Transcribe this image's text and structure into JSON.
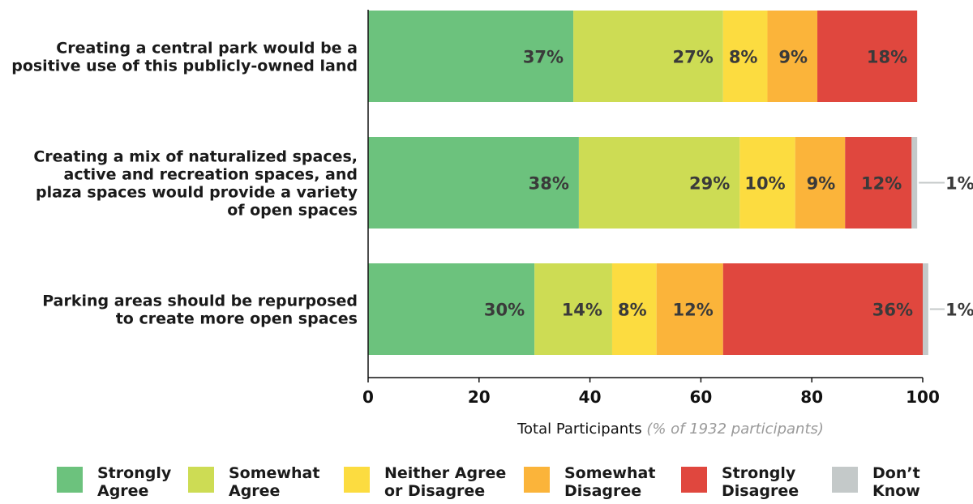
{
  "chart_data": {
    "type": "bar",
    "orientation": "horizontal",
    "stacked": true,
    "categories": [
      [
        "Creating a central park would be a",
        "positive use of this publicly-owned land"
      ],
      [
        "Creating a mix of naturalized spaces,",
        "active and recreation spaces, and",
        "plaza spaces would provide a variety",
        "of open spaces"
      ],
      [
        "Parking areas should be repurposed",
        "to create more open spaces"
      ]
    ],
    "series": [
      {
        "name": [
          "Strongly",
          "Agree"
        ],
        "color": "#6cc27d",
        "values": [
          37,
          38,
          30
        ]
      },
      {
        "name": [
          "Somewhat",
          "Agree"
        ],
        "color": "#cddc54",
        "values": [
          27,
          29,
          14
        ]
      },
      {
        "name": [
          "Neither Agree",
          "or Disagree"
        ],
        "color": "#fcdc40",
        "values": [
          8,
          10,
          8
        ]
      },
      {
        "name": [
          "Somewhat",
          "Disagree"
        ],
        "color": "#fbb43a",
        "values": [
          9,
          9,
          12
        ]
      },
      {
        "name": [
          "Strongly",
          "Disagree"
        ],
        "color": "#e0473e",
        "values": [
          18,
          12,
          36
        ]
      },
      {
        "name": [
          "Don’t",
          "Know"
        ],
        "color": "#c4c9c9",
        "values": [
          0,
          1,
          1
        ]
      }
    ],
    "xlabel": "Total Participants",
    "xlabel_note": "(% of 1932 participants)",
    "xlim": [
      0,
      100
    ],
    "xticks": [
      0,
      20,
      40,
      60,
      80,
      100
    ],
    "legend_position": "bottom",
    "grid": false
  }
}
